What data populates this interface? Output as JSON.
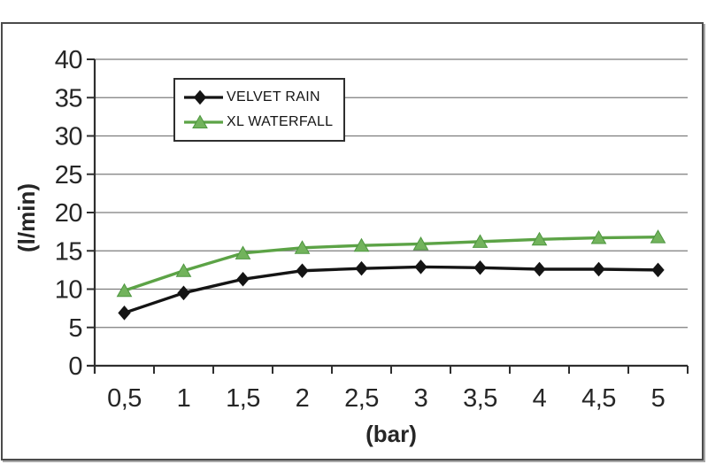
{
  "chart_data": {
    "type": "line",
    "title": "",
    "xlabel": "(bar)",
    "ylabel": "(l/min)",
    "categories": [
      "0,5",
      "1",
      "1,5",
      "2",
      "2,5",
      "3",
      "3,5",
      "4",
      "4,5",
      "5"
    ],
    "ylim": [
      0,
      40
    ],
    "yticks": [
      0,
      5,
      10,
      15,
      20,
      25,
      30,
      35,
      40
    ],
    "grid": "horizontal-only",
    "legend_position": "top-left-inside",
    "series": [
      {
        "name": "VELVET RAIN",
        "marker": "diamond",
        "color": "#141414",
        "values": [
          6.9,
          9.5,
          11.3,
          12.4,
          12.7,
          12.9,
          12.8,
          12.6,
          12.6,
          12.5
        ]
      },
      {
        "name": "XL WATERFALL",
        "marker": "triangle",
        "color": "#5ca346",
        "values": [
          9.8,
          12.4,
          14.7,
          15.4,
          15.7,
          15.9,
          16.2,
          16.5,
          16.7,
          16.8
        ]
      }
    ]
  },
  "colors": {
    "background": "#ffffff",
    "frame_border": "#4b4b4b",
    "gridline": "#7d7d7d",
    "axis": "#2e2e2e",
    "tick_text": "#262626",
    "marker_fill_green": "#72b35c",
    "marker_stroke_green": "#4e9740"
  }
}
